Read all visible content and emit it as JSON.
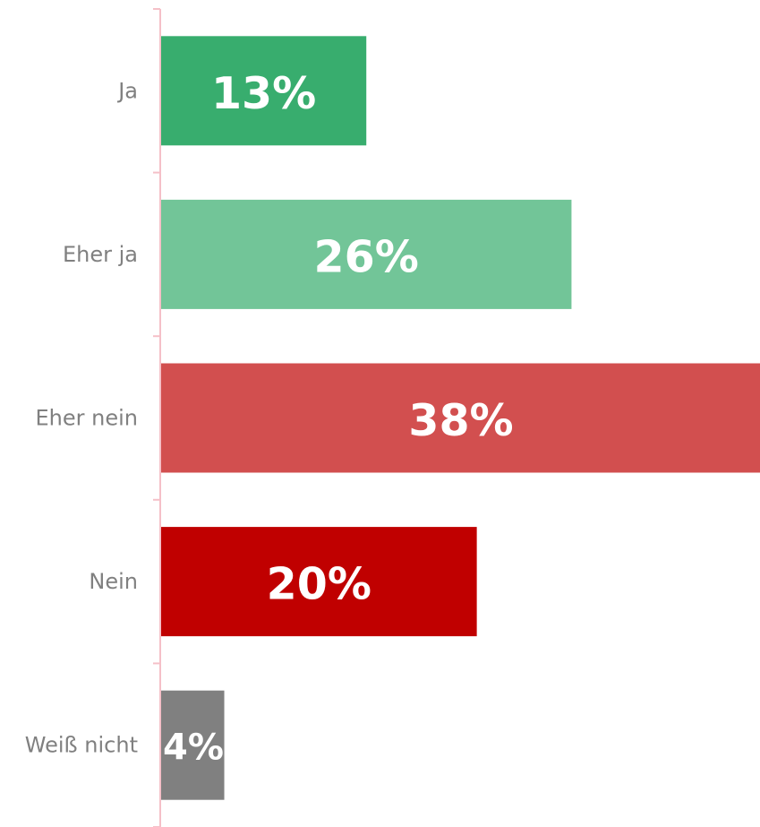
{
  "chart_data": {
    "type": "bar",
    "orientation": "horizontal",
    "categories": [
      "Ja",
      "Eher ja",
      "Eher nein",
      "Nein",
      "Weiß nicht"
    ],
    "values": [
      13,
      26,
      38,
      20,
      4
    ],
    "value_labels": [
      "13%",
      "26%",
      "38%",
      "20%",
      "4%"
    ],
    "colors": [
      "#38ad6e",
      "#72c598",
      "#d24f4f",
      "#c00000",
      "#808080"
    ],
    "axis_color": "#f5c0c8",
    "label_color": "#808080",
    "value_label_color": "#ffffff",
    "xlim": [
      0,
      38
    ],
    "grid": false,
    "legend": "none"
  }
}
